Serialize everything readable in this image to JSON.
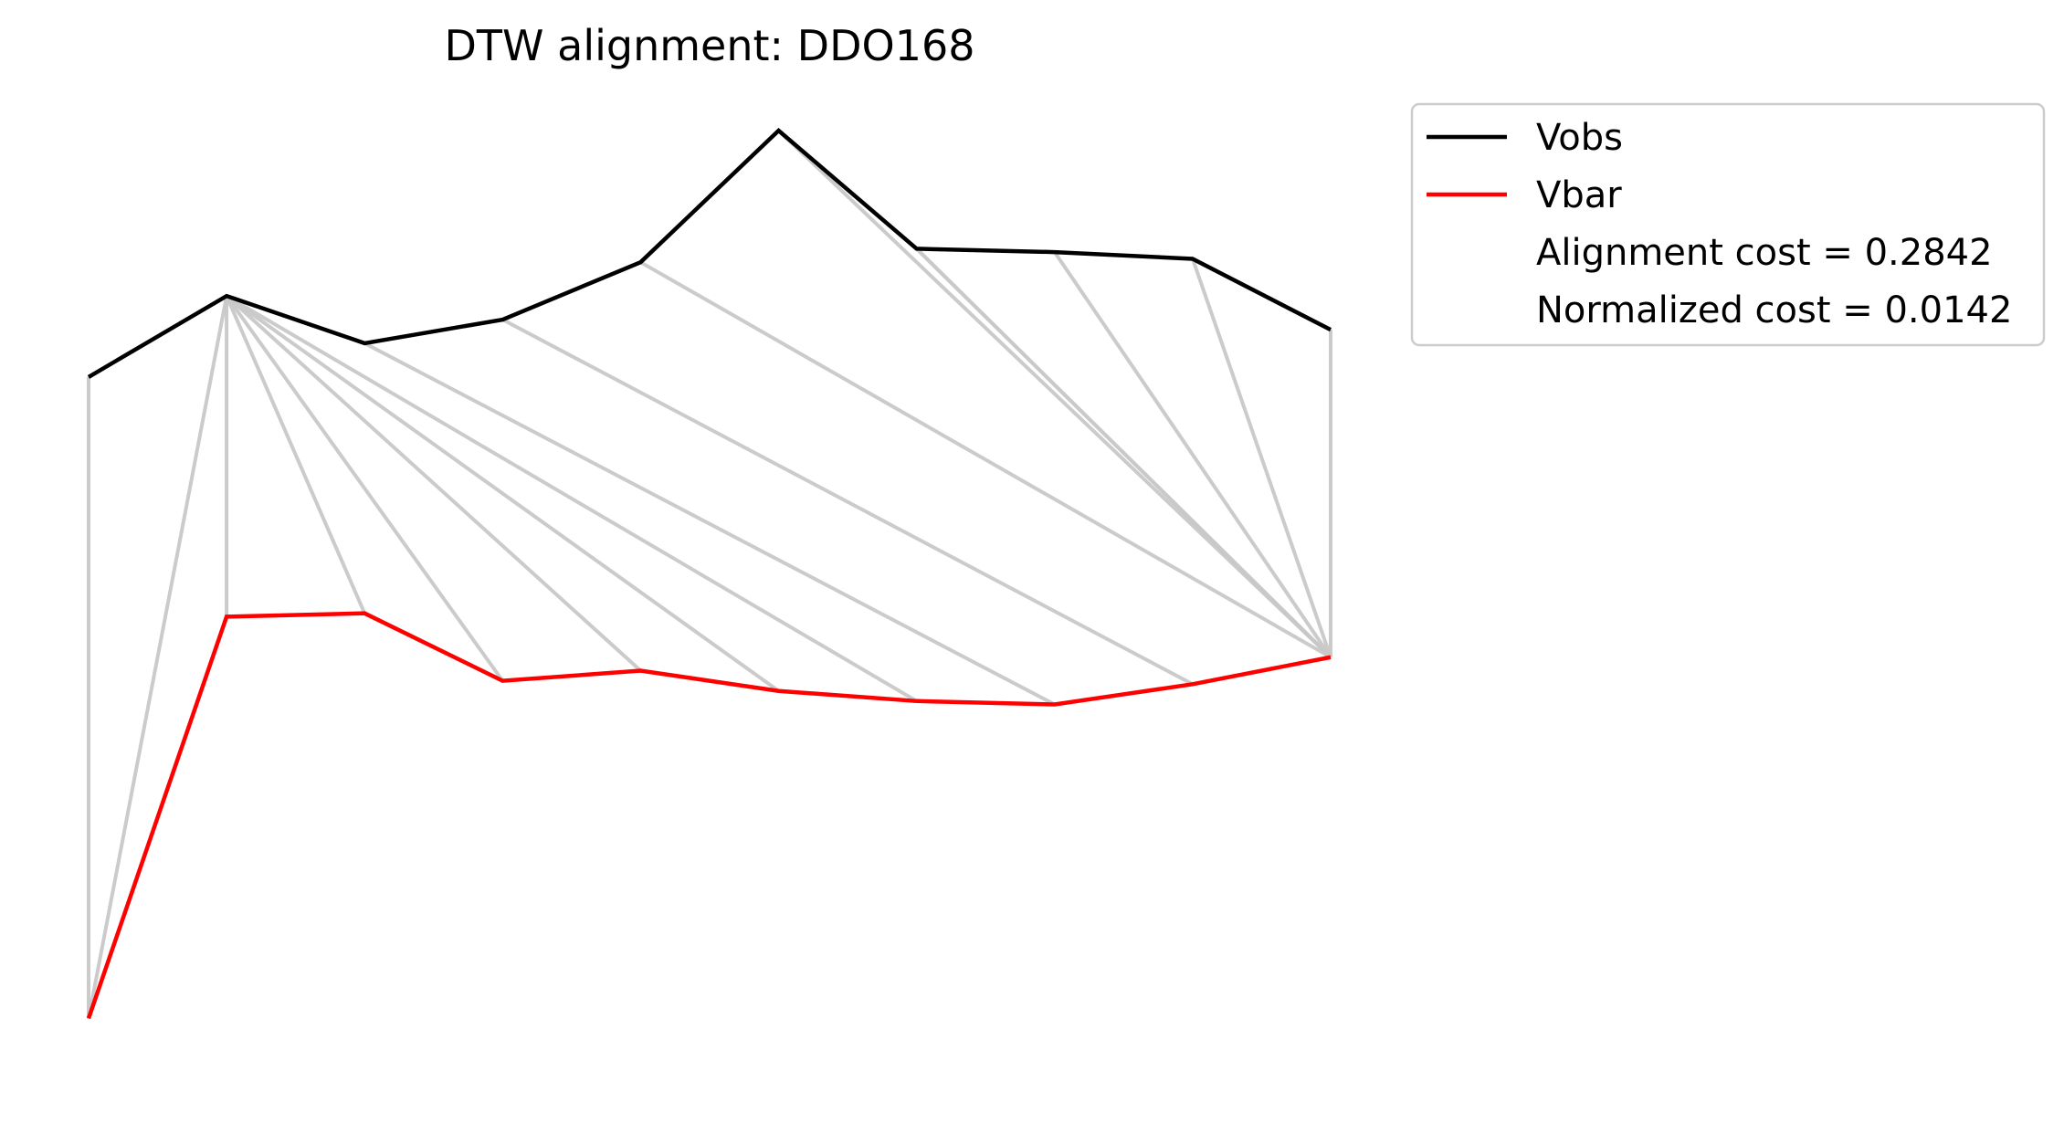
{
  "chart_data": {
    "type": "line",
    "title": "DTW alignment: DDO168",
    "xlabel": "",
    "ylabel": "",
    "axes_visible": false,
    "grid": false,
    "legend_position": "top-right outside plot",
    "x": [
      0,
      1,
      2,
      3,
      4,
      5,
      6,
      7,
      8,
      9
    ],
    "ylim": [
      -1.42,
      1.0
    ],
    "series": [
      {
        "name": "Vobs",
        "color": "#000000",
        "values": [
          0.59,
          0.83,
          0.69,
          0.76,
          0.93,
          1.32,
          0.97,
          0.96,
          0.94,
          0.73
        ]
      },
      {
        "name": "Vbar",
        "color": "#ff0000",
        "values": [
          -1.31,
          -0.12,
          -0.11,
          -0.31,
          -0.28,
          -0.34,
          -0.37,
          -0.38,
          -0.32,
          -0.24
        ]
      }
    ],
    "alignment": {
      "color": "#c8c8c8",
      "description_pairs": [
        [
          0,
          0
        ],
        [
          1,
          0
        ],
        [
          1,
          1
        ],
        [
          1,
          2
        ],
        [
          1,
          3
        ],
        [
          1,
          4
        ],
        [
          1,
          5
        ],
        [
          1,
          6
        ],
        [
          2,
          7
        ],
        [
          3,
          8
        ],
        [
          4,
          9
        ],
        [
          5,
          9
        ],
        [
          6,
          9
        ],
        [
          7,
          9
        ],
        [
          8,
          9
        ],
        [
          9,
          9
        ],
        [
          6,
          9
        ]
      ]
    },
    "legend_entries": [
      {
        "label": "Vobs",
        "color": "#000000",
        "has_line": true
      },
      {
        "label": "Vbar",
        "color": "#ff0000",
        "has_line": true
      },
      {
        "label": "Alignment cost = 0.2842",
        "has_line": false
      },
      {
        "label": "Normalized cost = 0.0142",
        "has_line": false
      }
    ]
  }
}
